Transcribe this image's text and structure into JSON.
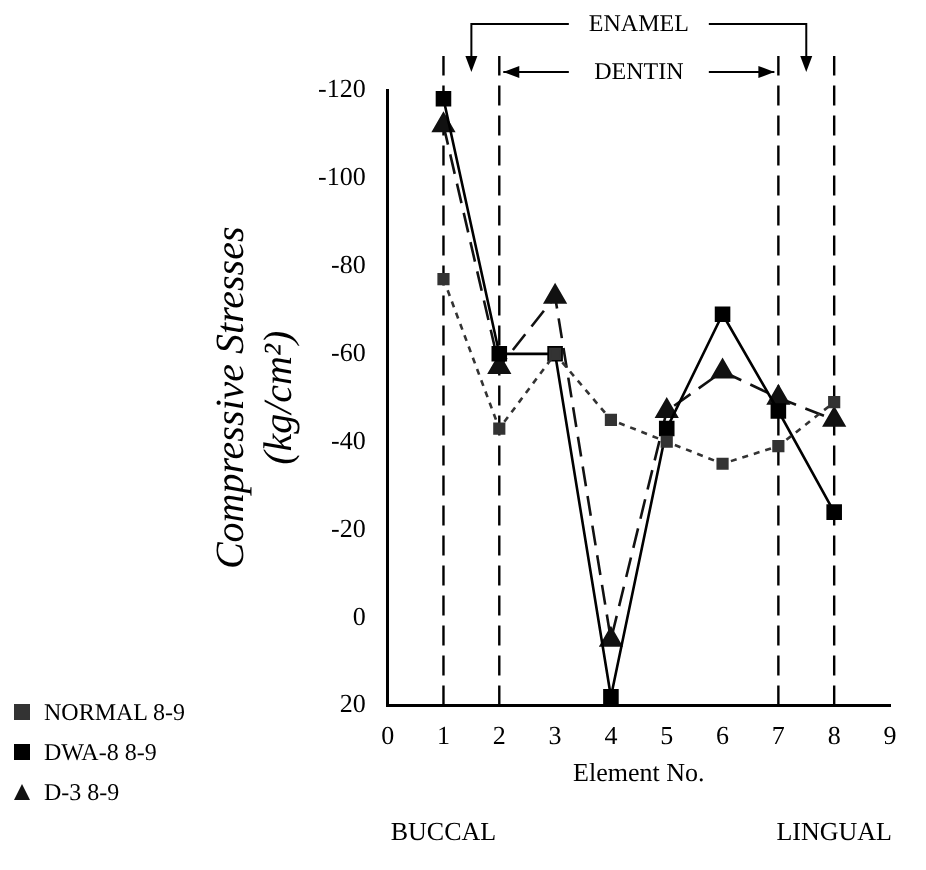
{
  "chart_data": {
    "type": "line",
    "xlabel": "Element No.",
    "ylabel": "Compressive Stresses (kg/cm²)",
    "x": [
      1,
      2,
      3,
      4,
      5,
      6,
      7,
      8
    ],
    "series": [
      {
        "name": "NORMAL 8-9",
        "color": "#333333",
        "marker": "square",
        "line_style": "dotted",
        "values": [
          -77,
          -43,
          -60,
          -45,
          -40,
          -35,
          -39,
          -49
        ]
      },
      {
        "name": "DWA-8 8-9",
        "color": "#000000",
        "marker": "square",
        "line_style": "solid",
        "values": [
          -118,
          -60,
          -60,
          18,
          -43,
          -69,
          -47,
          -24
        ]
      },
      {
        "name": "D-3 8-9",
        "color": "#111111",
        "marker": "triangle",
        "line_style": "dashed",
        "values": [
          -112,
          -57,
          -73,
          5,
          -47,
          -56,
          -50,
          -45
        ]
      }
    ],
    "xlim": [
      0,
      9
    ],
    "xticks": [
      0,
      1,
      2,
      3,
      4,
      5,
      6,
      7,
      8,
      9
    ],
    "ylim": [
      20,
      -120
    ],
    "yticks": [
      -120,
      -100,
      -80,
      -60,
      -40,
      -20,
      0,
      20
    ],
    "ref_lines": [
      {
        "axis": "x",
        "value": 1,
        "line_style": "dashed"
      },
      {
        "axis": "x",
        "value": 2,
        "line_style": "dashed"
      },
      {
        "axis": "x",
        "value": 7,
        "line_style": "dashed"
      },
      {
        "axis": "x",
        "value": 8,
        "line_style": "dashed"
      }
    ],
    "annotations": [
      "ENAMEL",
      "DENTIN",
      "BUCCAL",
      "LINGUAL"
    ],
    "legend": "bottom left",
    "grid": false
  }
}
